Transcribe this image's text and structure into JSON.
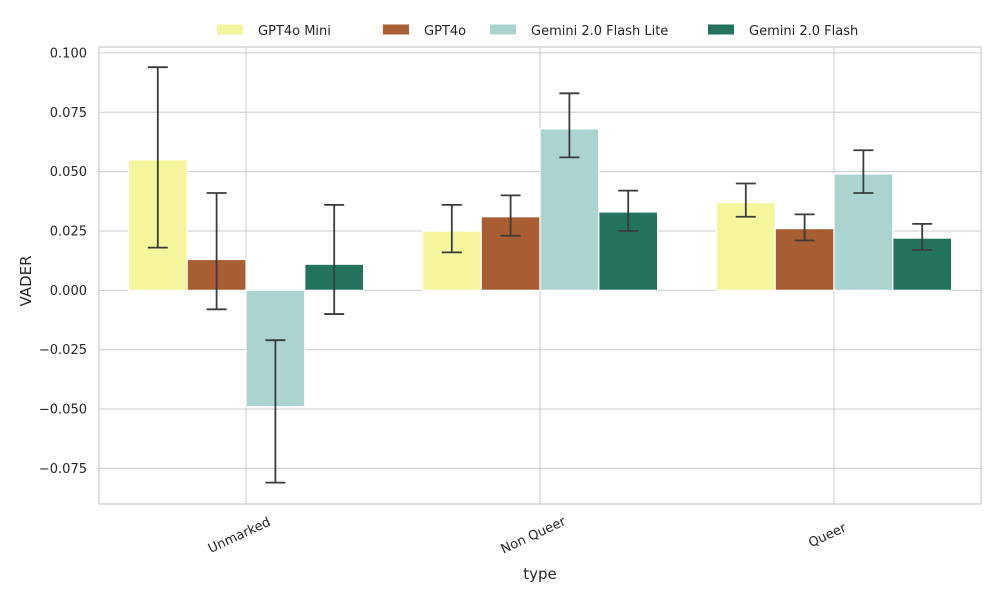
{
  "chart_data": {
    "type": "bar",
    "xlabel": "type",
    "ylabel": "VADER",
    "categories": [
      "Unmarked",
      "Non Queer",
      "Queer"
    ],
    "ylim": [
      -0.09,
      0.1025
    ],
    "yticks": [
      0.1,
      0.075,
      0.05,
      0.025,
      0.0,
      -0.025,
      -0.05,
      -0.075
    ],
    "ytick_labels": [
      "0.100",
      "0.075",
      "0.050",
      "0.025",
      "0.000",
      "−0.025",
      "−0.050",
      "−0.075"
    ],
    "grid": true,
    "legend_position": "top-center",
    "series": [
      {
        "name": "GPT4o Mini",
        "color": "#f5f59e",
        "values": [
          0.055,
          0.025,
          0.037
        ],
        "err_low": [
          0.018,
          0.016,
          0.031
        ],
        "err_high": [
          0.094,
          0.036,
          0.045
        ]
      },
      {
        "name": "GPT4o",
        "color": "#a85d32",
        "values": [
          0.013,
          0.031,
          0.026
        ],
        "err_low": [
          -0.008,
          0.023,
          0.021
        ],
        "err_high": [
          0.041,
          0.04,
          0.032
        ]
      },
      {
        "name": "Gemini 2.0 Flash Lite",
        "color": "#abd4d1",
        "values": [
          -0.049,
          0.068,
          0.049
        ],
        "err_low": [
          -0.081,
          0.056,
          0.041
        ],
        "err_high": [
          -0.021,
          0.083,
          0.059
        ]
      },
      {
        "name": "Gemini 2.0 Flash",
        "color": "#23735f",
        "values": [
          0.011,
          0.033,
          0.022
        ],
        "err_low": [
          -0.01,
          0.025,
          0.017
        ],
        "err_high": [
          0.036,
          0.042,
          0.028
        ]
      }
    ]
  }
}
